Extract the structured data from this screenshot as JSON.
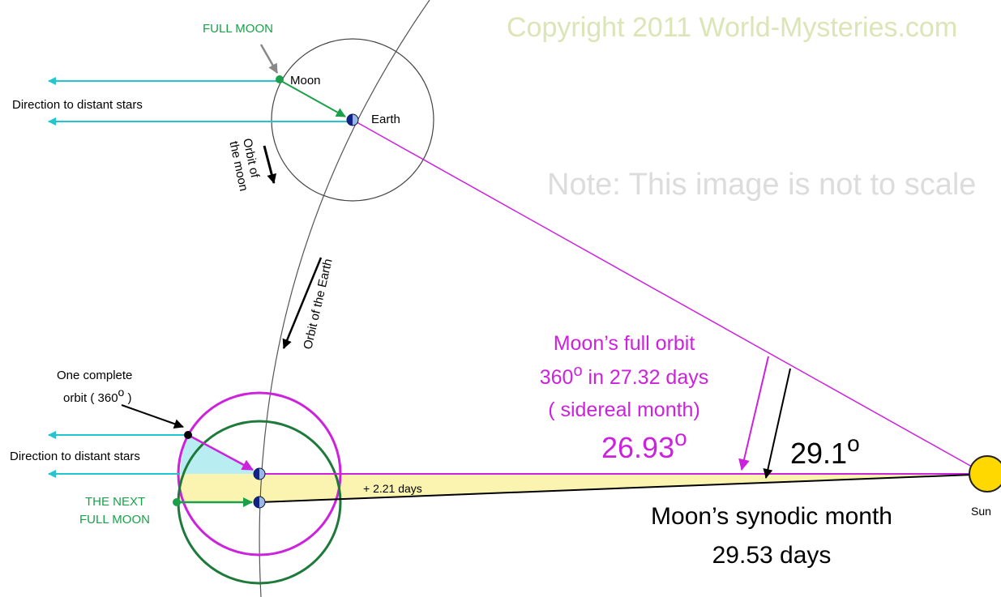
{
  "copyright": "Copyright 2011 World-Mysteries.com",
  "note": "Note: This image is not to scale",
  "full_moon": "FULL MOON",
  "moon": "Moon",
  "earth": "Earth",
  "sun": "Sun",
  "direction_top": "Direction to distant stars",
  "direction_bottom": "Direction to distant stars",
  "orbit_moon": [
    "Orbit of",
    "the moon"
  ],
  "orbit_earth": "Orbit of the Earth",
  "complete_orbit": {
    "line1": "One complete",
    "line2": "orbit ( 360",
    "degree": "o",
    "line2_end": " )"
  },
  "next_full_moon": [
    "THE NEXT",
    "FULL MOON"
  ],
  "sidereal": {
    "line1": "Moon’s full orbit",
    "line2_value": "360",
    "line2_degree": "o",
    "line2_rest": " in 27.32 days",
    "line3": "( sidereal month)",
    "angle": "26.93",
    "angle_degree": "o"
  },
  "synodic_angle": {
    "value": "29.1",
    "degree": "o"
  },
  "delay": "+ 2.21 days",
  "synodic": [
    "Moon’s synodic month",
    "29.53 days"
  ]
}
